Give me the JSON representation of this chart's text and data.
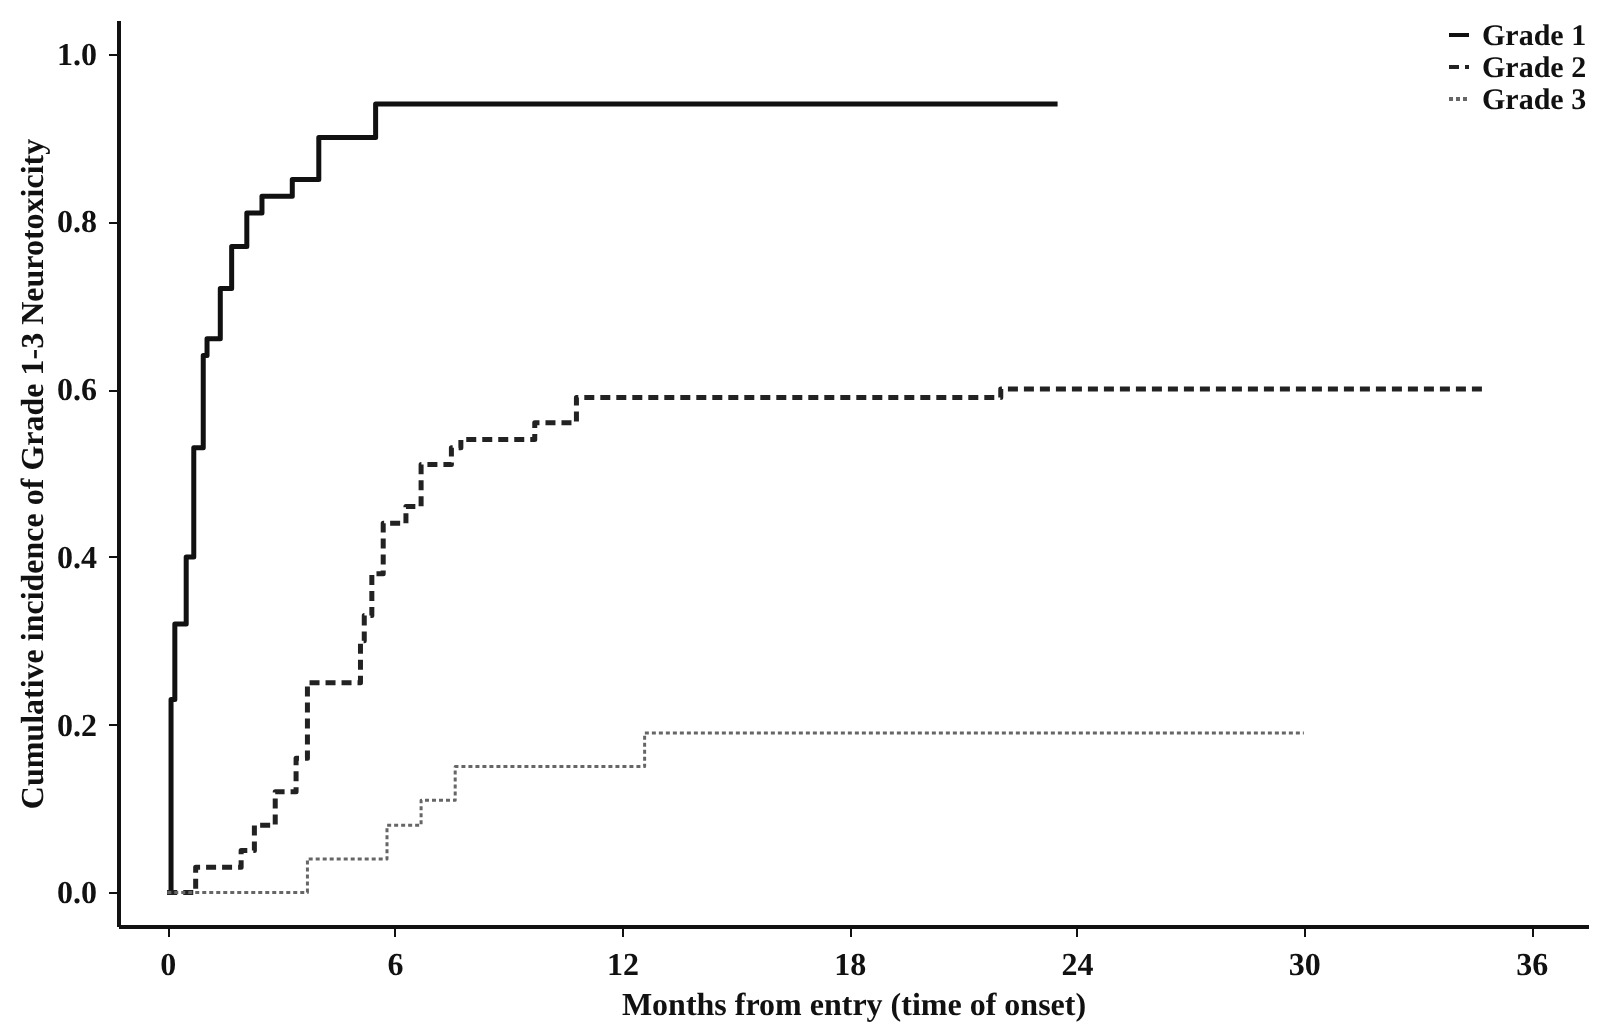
{
  "chart_data": {
    "type": "step",
    "xlabel": "Months from entry (time of onset)",
    "ylabel": "Cumulative incidence of Grade 1-3 Neurotoxicity",
    "xlim": [
      -1.3,
      37.5
    ],
    "xticks": [
      0,
      6,
      12,
      18,
      24,
      30,
      36
    ],
    "ylim": [
      -0.04,
      1.04
    ],
    "yticks": [
      {
        "value": 0,
        "label": "0.0"
      },
      0.2,
      0.4,
      0.6,
      0.8,
      {
        "value": 1,
        "label": "1.0"
      }
    ],
    "grid": false,
    "legend": "top right",
    "series": [
      {
        "name": "Grade 1",
        "color": "#111111",
        "line_style": "solid",
        "x": [
          0,
          0.1,
          0.2,
          0.5,
          0.7,
          0.95,
          1.05,
          1.4,
          1.7,
          2.1,
          2.5,
          3.3,
          4.0,
          5.5,
          23.5
        ],
        "values": [
          0,
          0.23,
          0.32,
          0.4,
          0.53,
          0.64,
          0.66,
          0.72,
          0.77,
          0.81,
          0.83,
          0.85,
          0.9,
          0.94,
          0.94
        ]
      },
      {
        "name": "Grade 2",
        "color": "#222222",
        "line_style": "dashed",
        "x": [
          0,
          0.75,
          1.95,
          2.3,
          2.85,
          3.4,
          3.7,
          5.1,
          5.2,
          5.4,
          5.7,
          6.3,
          6.7,
          7.5,
          7.75,
          9.7,
          10.8,
          22,
          34.7
        ],
        "values": [
          0,
          0.03,
          0.05,
          0.08,
          0.12,
          0.16,
          0.25,
          0.3,
          0.33,
          0.38,
          0.44,
          0.46,
          0.51,
          0.53,
          0.54,
          0.56,
          0.59,
          0.6,
          0.6
        ]
      },
      {
        "name": "Grade 3",
        "color": "#666666",
        "line_style": "dotted",
        "x": [
          0,
          3.7,
          5.8,
          6.7,
          7.6,
          12.6,
          30.0
        ],
        "values": [
          0,
          0.04,
          0.08,
          0.11,
          0.15,
          0.19,
          0.19
        ]
      }
    ]
  }
}
